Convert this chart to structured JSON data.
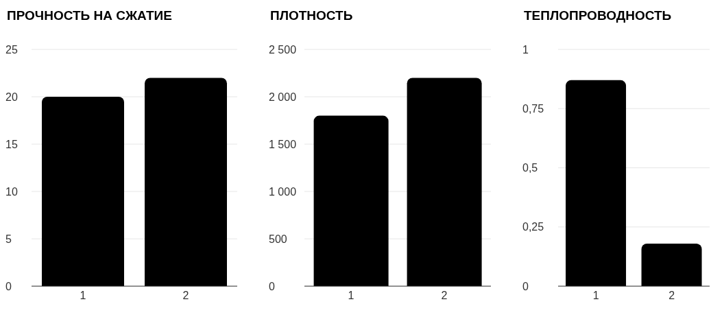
{
  "chart_data": [
    {
      "type": "bar",
      "title": "ПРОЧНОСТЬ НА СЖАТИЕ",
      "categories": [
        "1",
        "2"
      ],
      "values": [
        20,
        22
      ],
      "color": "#000000",
      "ylim": [
        0,
        25
      ],
      "yticks": [
        0,
        5,
        10,
        15,
        20,
        25
      ],
      "grid": "y"
    },
    {
      "type": "bar",
      "title": "ПЛОТНОСТЬ",
      "categories": [
        "1",
        "2"
      ],
      "values": [
        1800,
        2200
      ],
      "color": "#000000",
      "ylim": [
        0,
        2500
      ],
      "yticks": [
        0,
        500,
        {
          "value": 1000,
          "label": "1 000"
        },
        {
          "value": 1500,
          "label": "1 500"
        },
        {
          "value": 2000,
          "label": "2 000"
        },
        {
          "value": 2500,
          "label": "2 500"
        }
      ],
      "grid": "y"
    },
    {
      "type": "bar",
      "title": "ТЕПЛОПРОВОДНОСТЬ",
      "categories": [
        "1",
        "2"
      ],
      "values": [
        0.87,
        0.18
      ],
      "color": "#000000",
      "ylim": [
        0,
        1
      ],
      "yticks": [
        0,
        {
          "value": 0.25,
          "label": "0,25"
        },
        {
          "value": 0.5,
          "label": "0,5"
        },
        {
          "value": 0.75,
          "label": "0,75"
        },
        1
      ],
      "grid": "y"
    }
  ]
}
